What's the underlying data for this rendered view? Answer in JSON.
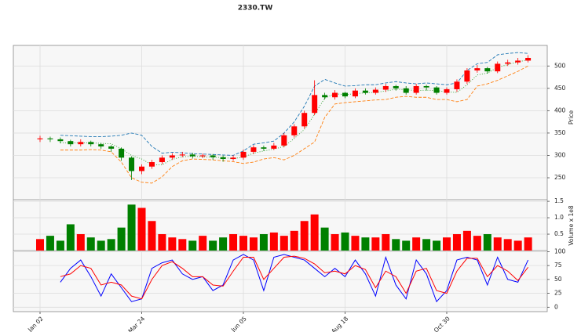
{
  "chart_data": {
    "type": "candlestick",
    "title": "2330.TW",
    "categories": [
      "Jan 02",
      null,
      null,
      null,
      null,
      null,
      null,
      null,
      null,
      null,
      "Mar 24",
      null,
      null,
      null,
      null,
      null,
      null,
      null,
      null,
      null,
      "Jun 05",
      null,
      null,
      null,
      null,
      null,
      null,
      null,
      null,
      null,
      "Aug 18",
      null,
      null,
      null,
      null,
      null,
      null,
      null,
      null,
      null,
      "Oct 30",
      null,
      null,
      null,
      null,
      null,
      null,
      null,
      null
    ],
    "open": [
      336,
      338,
      336,
      332,
      325,
      330,
      325,
      320,
      315,
      295,
      265,
      275,
      285,
      295,
      300,
      302,
      298,
      300,
      296,
      292,
      295,
      308,
      318,
      315,
      322,
      345,
      365,
      395,
      435,
      430,
      440,
      432,
      445,
      440,
      447,
      455,
      450,
      440,
      455,
      452,
      440,
      448,
      465,
      490,
      495,
      488,
      505,
      508,
      512
    ],
    "high": [
      344,
      342,
      340,
      335,
      336,
      333,
      328,
      323,
      318,
      298,
      280,
      290,
      300,
      305,
      308,
      306,
      304,
      303,
      300,
      300,
      313,
      323,
      322,
      328,
      350,
      370,
      400,
      468,
      440,
      446,
      442,
      450,
      450,
      452,
      460,
      458,
      455,
      460,
      458,
      455,
      452,
      470,
      495,
      502,
      498,
      510,
      514,
      518,
      524
    ],
    "low": [
      330,
      330,
      327,
      320,
      320,
      320,
      315,
      308,
      288,
      245,
      258,
      270,
      280,
      290,
      296,
      293,
      294,
      290,
      286,
      288,
      290,
      303,
      310,
      312,
      318,
      340,
      360,
      390,
      425,
      425,
      428,
      428,
      436,
      436,
      442,
      445,
      436,
      436,
      445,
      436,
      436,
      442,
      460,
      485,
      483,
      484,
      500,
      503,
      508
    ],
    "close": [
      338,
      336,
      332,
      325,
      330,
      325,
      320,
      315,
      295,
      265,
      275,
      285,
      295,
      300,
      302,
      298,
      300,
      296,
      292,
      295,
      308,
      318,
      315,
      322,
      345,
      365,
      395,
      435,
      430,
      440,
      432,
      445,
      440,
      447,
      455,
      450,
      440,
      455,
      452,
      440,
      448,
      465,
      490,
      495,
      488,
      505,
      508,
      512,
      518
    ],
    "up_color": "#ff0000",
    "down_color": "#008000",
    "ylabel": "Price",
    "ylim": [
      201,
      546
    ],
    "yticks": [
      250,
      300,
      350,
      400,
      450,
      500
    ],
    "grid": true,
    "overlays": [
      {
        "color": "#1f77b4",
        "style": "dashed",
        "values": [
          null,
          null,
          345,
          344,
          343,
          342,
          342,
          343,
          345,
          350,
          345,
          320,
          305,
          307,
          306,
          304,
          303,
          302,
          301,
          300,
          310,
          325,
          328,
          332,
          350,
          375,
          410,
          455,
          470,
          462,
          455,
          456,
          458,
          458,
          462,
          465,
          462,
          460,
          462,
          460,
          458,
          462,
          490,
          505,
          508,
          525,
          528,
          530,
          528
        ]
      },
      {
        "color": "#2ca02c",
        "style": "dotted",
        "values": [
          null,
          null,
          328,
          328,
          328,
          328,
          327,
          326,
          315,
          300,
          292,
          279,
          279,
          291,
          297,
          298,
          297,
          296,
          295,
          293,
          296,
          305,
          310,
          314,
          320,
          338,
          358,
          392,
          428,
          438,
          436,
          438,
          440,
          441,
          444,
          448,
          447,
          445,
          446,
          445,
          442,
          441,
          458,
          480,
          484,
          497,
          503,
          509,
          514
        ]
      },
      {
        "color": "#ff7f0e",
        "style": "dashed",
        "values": [
          null,
          null,
          312,
          312,
          312,
          313,
          312,
          308,
          285,
          250,
          240,
          238,
          252,
          275,
          288,
          292,
          291,
          290,
          288,
          286,
          282,
          285,
          292,
          295,
          290,
          300,
          315,
          330,
          385,
          415,
          418,
          420,
          422,
          424,
          425,
          430,
          432,
          430,
          430,
          425,
          425,
          420,
          425,
          455,
          460,
          468,
          478,
          488,
          500
        ]
      }
    ],
    "volume": {
      "ylabel": "Volume x 1e8",
      "ylim": [
        0,
        1.55
      ],
      "yticks": [
        0.5,
        {
          "value": 1,
          "label": "1.0"
        },
        1.5
      ],
      "values": [
        0.35,
        0.45,
        0.3,
        0.8,
        0.5,
        0.4,
        0.3,
        0.35,
        0.7,
        1.4,
        1.3,
        0.9,
        0.5,
        0.4,
        0.35,
        0.3,
        0.45,
        0.3,
        0.4,
        0.5,
        0.45,
        0.4,
        0.5,
        0.55,
        0.45,
        0.6,
        0.9,
        1.1,
        0.7,
        0.5,
        0.55,
        0.45,
        0.4,
        0.4,
        0.5,
        0.35,
        0.3,
        0.4,
        0.35,
        0.3,
        0.4,
        0.5,
        0.6,
        0.45,
        0.5,
        0.4,
        0.35,
        0.3,
        0.4
      ]
    },
    "stoch": {
      "ylim": [
        -8,
        102
      ],
      "yticks": [
        0,
        25,
        50,
        75,
        100
      ],
      "series": [
        {
          "color": "#0000ff",
          "values": [
            null,
            null,
            45,
            70,
            85,
            55,
            20,
            60,
            35,
            10,
            15,
            70,
            80,
            85,
            60,
            50,
            55,
            30,
            40,
            85,
            95,
            85,
            30,
            90,
            95,
            90,
            85,
            70,
            55,
            70,
            55,
            85,
            60,
            20,
            90,
            40,
            15,
            85,
            60,
            10,
            30,
            85,
            90,
            85,
            40,
            90,
            50,
            45,
            85
          ]
        },
        {
          "color": "#ff0000",
          "values": [
            null,
            null,
            55,
            60,
            75,
            70,
            40,
            45,
            40,
            20,
            15,
            50,
            75,
            82,
            70,
            55,
            55,
            40,
            38,
            65,
            90,
            90,
            50,
            70,
            90,
            92,
            88,
            78,
            62,
            65,
            60,
            75,
            68,
            35,
            65,
            55,
            25,
            65,
            70,
            30,
            25,
            65,
            88,
            88,
            55,
            75,
            65,
            48,
            72
          ]
        }
      ]
    }
  }
}
